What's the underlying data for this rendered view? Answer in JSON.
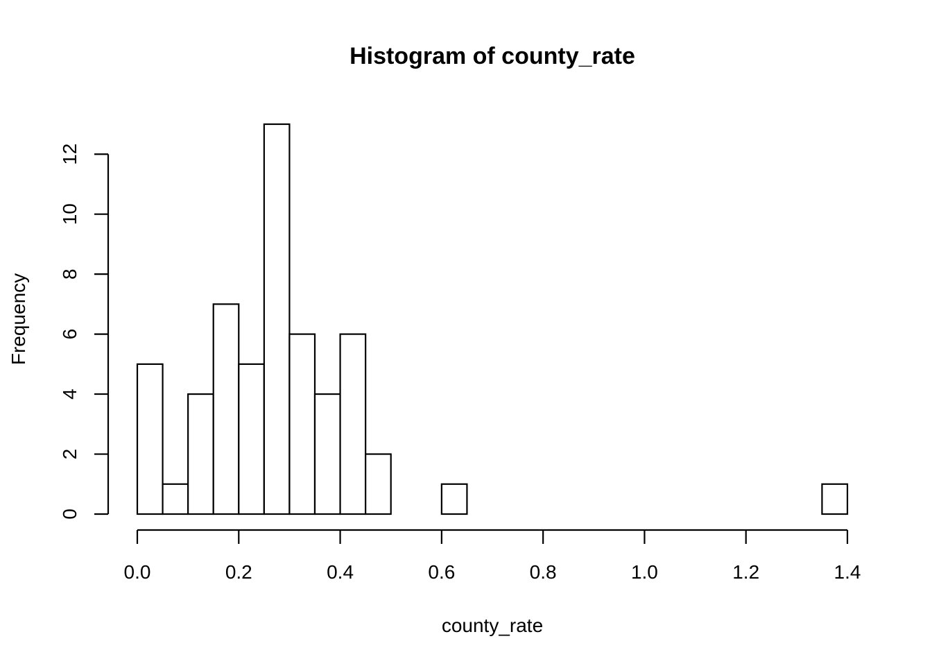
{
  "chart_data": {
    "type": "histogram",
    "title": "Histogram of county_rate",
    "xlabel": "county_rate",
    "ylabel": "Frequency",
    "bin_width": 0.05,
    "bins": [
      {
        "start": 0.0,
        "end": 0.05,
        "count": 5
      },
      {
        "start": 0.05,
        "end": 0.1,
        "count": 1
      },
      {
        "start": 0.1,
        "end": 0.15,
        "count": 4
      },
      {
        "start": 0.15,
        "end": 0.2,
        "count": 7
      },
      {
        "start": 0.2,
        "end": 0.25,
        "count": 5
      },
      {
        "start": 0.25,
        "end": 0.3,
        "count": 13
      },
      {
        "start": 0.3,
        "end": 0.35,
        "count": 6
      },
      {
        "start": 0.35,
        "end": 0.4,
        "count": 4
      },
      {
        "start": 0.4,
        "end": 0.45,
        "count": 6
      },
      {
        "start": 0.45,
        "end": 0.5,
        "count": 2
      },
      {
        "start": 0.5,
        "end": 0.55,
        "count": 0
      },
      {
        "start": 0.55,
        "end": 0.6,
        "count": 0
      },
      {
        "start": 0.6,
        "end": 0.65,
        "count": 1
      },
      {
        "start": 0.65,
        "end": 0.7,
        "count": 0
      },
      {
        "start": 0.7,
        "end": 0.75,
        "count": 0
      },
      {
        "start": 0.75,
        "end": 0.8,
        "count": 0
      },
      {
        "start": 0.8,
        "end": 0.85,
        "count": 0
      },
      {
        "start": 0.85,
        "end": 0.9,
        "count": 0
      },
      {
        "start": 0.9,
        "end": 0.95,
        "count": 0
      },
      {
        "start": 0.95,
        "end": 1.0,
        "count": 0
      },
      {
        "start": 1.0,
        "end": 1.05,
        "count": 0
      },
      {
        "start": 1.05,
        "end": 1.1,
        "count": 0
      },
      {
        "start": 1.1,
        "end": 1.15,
        "count": 0
      },
      {
        "start": 1.15,
        "end": 1.2,
        "count": 0
      },
      {
        "start": 1.2,
        "end": 1.25,
        "count": 0
      },
      {
        "start": 1.25,
        "end": 1.3,
        "count": 0
      },
      {
        "start": 1.3,
        "end": 1.35,
        "count": 0
      },
      {
        "start": 1.35,
        "end": 1.4,
        "count": 1
      }
    ],
    "xlim": [
      0,
      1.4
    ],
    "ylim": [
      0,
      13
    ],
    "x_ticks": [
      0.0,
      0.2,
      0.4,
      0.6,
      0.8,
      1.0,
      1.2,
      1.4
    ],
    "x_tick_labels": [
      "0.0",
      "0.2",
      "0.4",
      "0.6",
      "0.8",
      "1.0",
      "1.2",
      "1.4"
    ],
    "y_ticks": [
      0,
      2,
      4,
      6,
      8,
      10,
      12
    ],
    "y_tick_labels": [
      "0",
      "2",
      "4",
      "6",
      "8",
      "10",
      "12"
    ],
    "grid": false,
    "bar_fill": "#ffffff",
    "bar_stroke": "#000000"
  }
}
